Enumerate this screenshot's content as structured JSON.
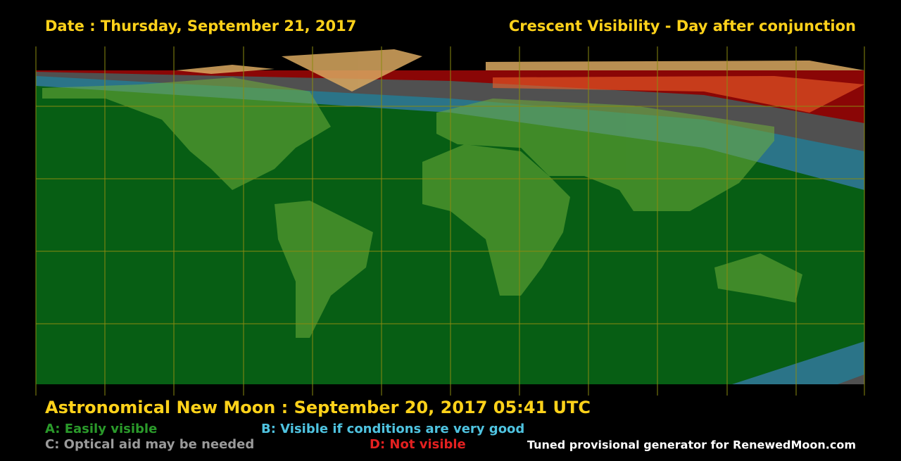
{
  "header": {
    "date": "Date : Thursday, September 21, 2017",
    "title": "Crescent Visibility - Day after conjunction"
  },
  "footer": {
    "new_moon": "Astronomical New Moon : September 20, 2017 05:41 UTC",
    "legend": [
      "A: Easily visible",
      "B: Visible if conditions are very good",
      "C: Optical aid may be needed",
      "D: Not visible"
    ],
    "credit": "Tuned provisional generator for RenewedMoon.com"
  }
}
